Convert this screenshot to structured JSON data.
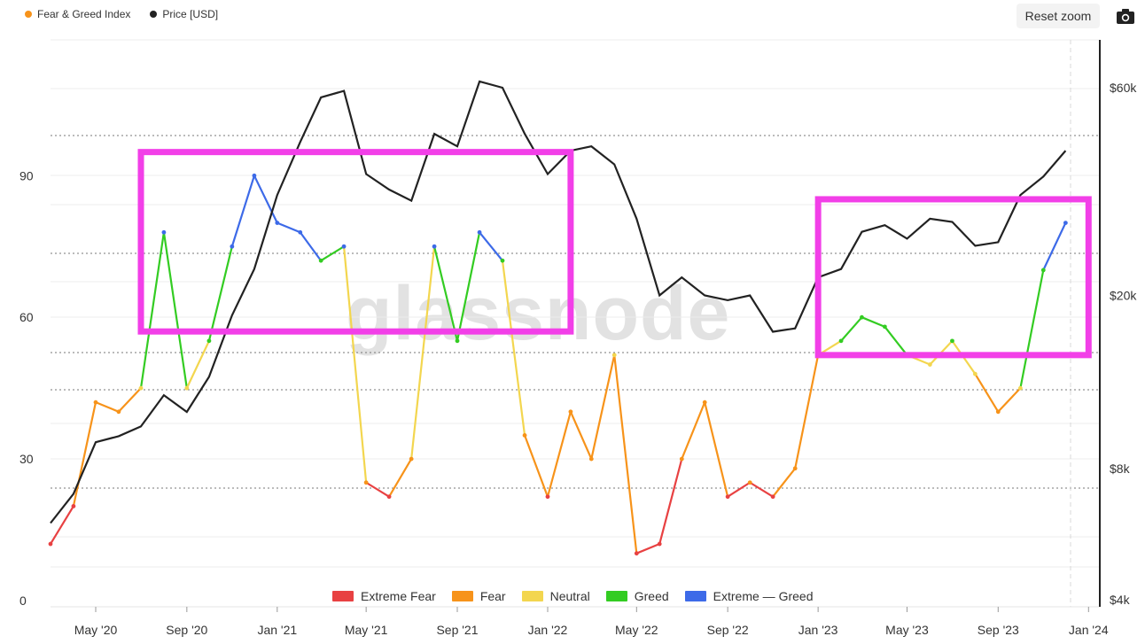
{
  "top_legend": [
    {
      "label": "Fear & Greed Index",
      "color": "#f7931a"
    },
    {
      "label": "Price [USD]",
      "color": "#222222"
    }
  ],
  "reset_zoom_label": "Reset zoom",
  "camera_icon": "camera-icon",
  "watermark": "glassnode",
  "chart_data": {
    "type": "line",
    "x_tick_labels": [
      "May '20",
      "Sep '20",
      "Jan '21",
      "May '21",
      "Sep '21",
      "Jan '22",
      "May '22",
      "Sep '22",
      "Jan '23",
      "May '23",
      "Sep '23",
      "Jan '24"
    ],
    "left_axis": {
      "ticks": [
        "0",
        "30",
        "60",
        "90"
      ],
      "range": [
        0,
        100
      ]
    },
    "right_axis": {
      "ticks": [
        "$4k",
        "$8k",
        "$20k",
        "$60k"
      ],
      "scale": "log"
    },
    "bands": [
      {
        "label": "Extreme Fear",
        "color": "#e84142",
        "range": [
          0,
          25
        ]
      },
      {
        "label": "Fear",
        "color": "#f7931a",
        "range": [
          25,
          45
        ]
      },
      {
        "label": "Neutral",
        "color": "#f3d64f",
        "range": [
          45,
          55
        ]
      },
      {
        "label": "Greed",
        "color": "#33cc22",
        "range": [
          55,
          75
        ]
      },
      {
        "label": "Extreme — Greed",
        "color": "#3d6ae8",
        "range": [
          75,
          100
        ]
      }
    ],
    "series": [
      {
        "name": "Fear & Greed Index",
        "x": [
          "2020-03",
          "2020-04",
          "2020-05",
          "2020-06",
          "2020-07",
          "2020-08",
          "2020-09",
          "2020-10",
          "2020-11",
          "2020-12",
          "2021-01",
          "2021-02",
          "2021-03",
          "2021-04",
          "2021-05",
          "2021-06",
          "2021-07",
          "2021-08",
          "2021-09",
          "2021-10",
          "2021-11",
          "2021-12",
          "2022-01",
          "2022-02",
          "2022-03",
          "2022-04",
          "2022-05",
          "2022-06",
          "2022-07",
          "2022-08",
          "2022-09",
          "2022-10",
          "2022-11",
          "2022-12",
          "2023-01",
          "2023-02",
          "2023-03",
          "2023-04",
          "2023-05",
          "2023-06",
          "2023-07",
          "2023-08",
          "2023-09",
          "2023-10",
          "2023-11",
          "2023-12"
        ],
        "values": [
          12,
          20,
          42,
          40,
          45,
          78,
          45,
          55,
          75,
          90,
          80,
          78,
          72,
          75,
          25,
          22,
          30,
          75,
          55,
          78,
          72,
          35,
          22,
          40,
          30,
          52,
          10,
          12,
          30,
          42,
          22,
          25,
          22,
          28,
          52,
          55,
          60,
          58,
          52,
          50,
          55,
          48,
          40,
          45,
          70,
          80
        ]
      },
      {
        "name": "Price [USD]",
        "x": [
          "2020-03",
          "2020-04",
          "2020-05",
          "2020-06",
          "2020-07",
          "2020-08",
          "2020-09",
          "2020-10",
          "2020-11",
          "2020-12",
          "2021-01",
          "2021-02",
          "2021-03",
          "2021-04",
          "2021-05",
          "2021-06",
          "2021-07",
          "2021-08",
          "2021-09",
          "2021-10",
          "2021-11",
          "2021-12",
          "2022-01",
          "2022-02",
          "2022-03",
          "2022-04",
          "2022-05",
          "2022-06",
          "2022-07",
          "2022-08",
          "2022-09",
          "2022-10",
          "2022-11",
          "2022-12",
          "2023-01",
          "2023-02",
          "2023-03",
          "2023-04",
          "2023-05",
          "2023-06",
          "2023-07",
          "2023-08",
          "2023-09",
          "2023-10",
          "2023-11",
          "2023-12"
        ],
        "values": [
          6000,
          7000,
          9200,
          9500,
          10000,
          11800,
          10800,
          13000,
          18000,
          23000,
          34000,
          45000,
          57000,
          59000,
          38000,
          35000,
          33000,
          47000,
          44000,
          62000,
          60000,
          47000,
          38000,
          43000,
          44000,
          40000,
          30000,
          20000,
          22000,
          20000,
          19500,
          20000,
          16500,
          16800,
          22000,
          23000,
          28000,
          29000,
          27000,
          30000,
          29500,
          26000,
          26500,
          34000,
          37500,
          43000
        ]
      }
    ],
    "annotations": [
      {
        "type": "highlight-box",
        "color": "#f23fe8",
        "x_range": [
          "2020-07",
          "2022-02"
        ],
        "y_range": [
          57,
          95
        ]
      },
      {
        "type": "highlight-box",
        "color": "#f23fe8",
        "x_range": [
          "2023-01",
          "2024-01"
        ],
        "y_range": [
          52,
          85
        ]
      }
    ]
  }
}
